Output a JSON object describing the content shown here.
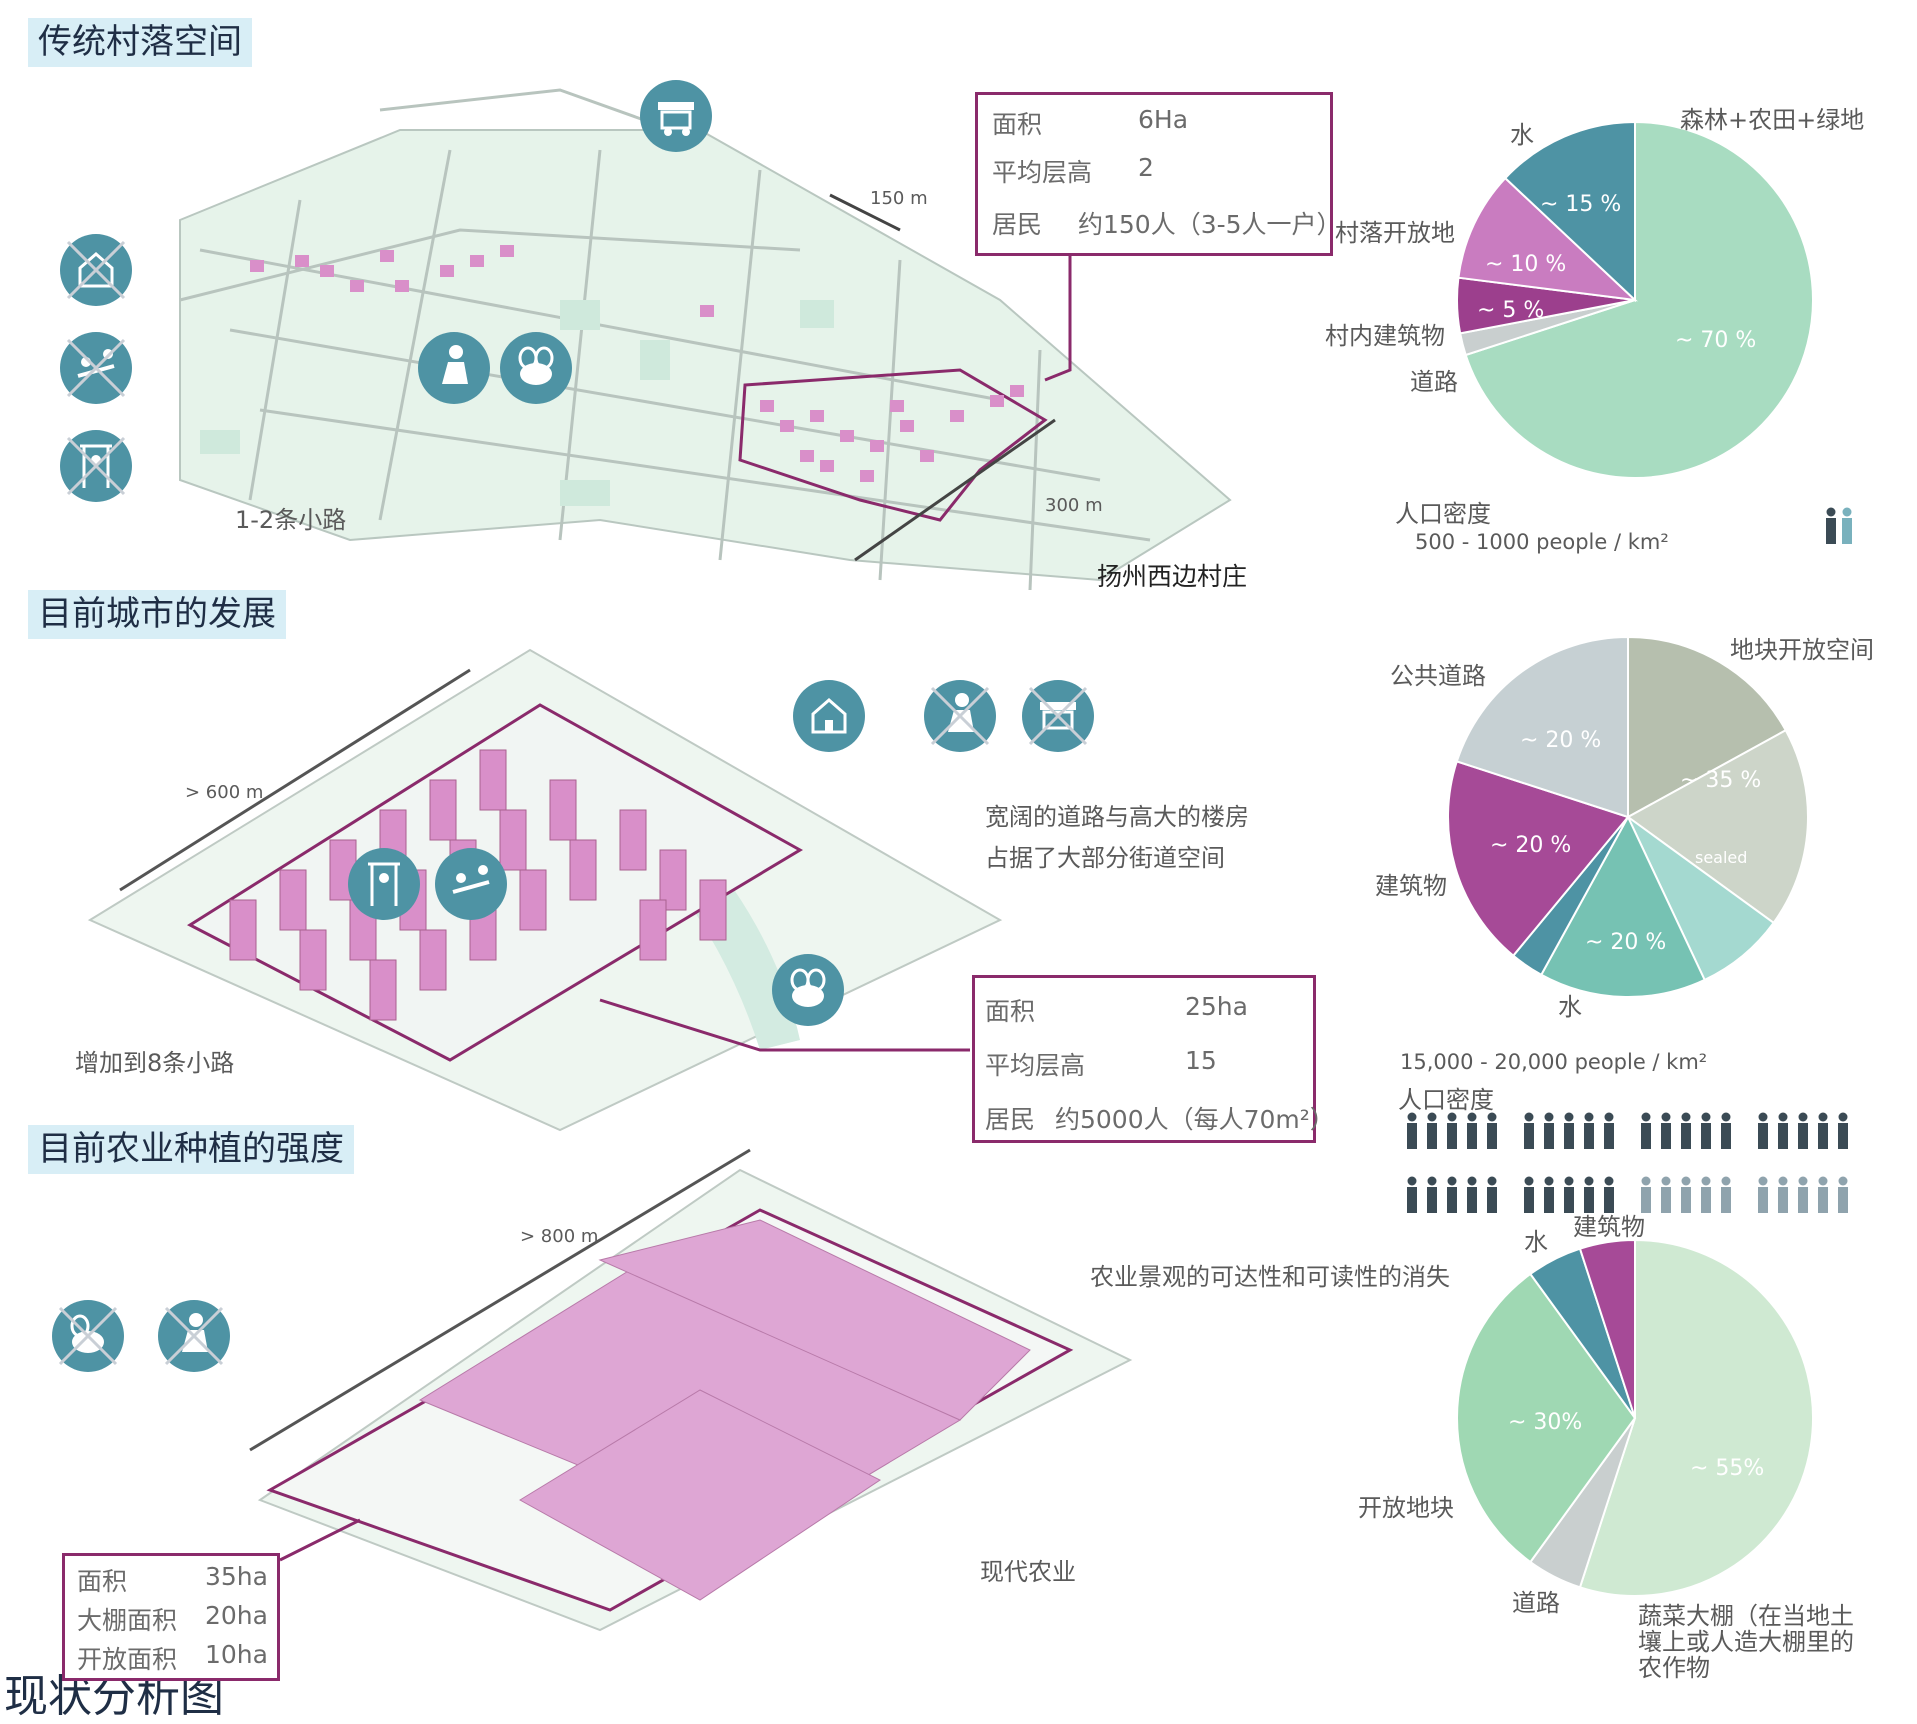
{
  "main_title": "现状分析图",
  "sections": {
    "village": {
      "title": "传统村落空间",
      "road_label": "1-2条小路",
      "dim_short": "150 m",
      "dim_long": "300 m",
      "place_label": "扬州西边村庄",
      "info": {
        "area_label": "面积",
        "area_value": "6Ha",
        "floors_label": "平均层高",
        "floors_value": "2",
        "residents_label": "居民",
        "residents_value": "约150人（3-5人一户）"
      },
      "density_label": "人口密度",
      "density_value": "500 - 1000 people / km²",
      "pie_labels": [
        "水",
        "森林+农田+绿地",
        "村落开放地",
        "村内建筑物",
        "道路"
      ],
      "pie_values": [
        "~ 15 %",
        "~ 10 %",
        "~ 5 %",
        "~ 70 %"
      ]
    },
    "city": {
      "title": "目前城市的发展",
      "road_label": "增加到8条小路",
      "dim_label": "> 600 m",
      "note_line1": "宽阔的道路与高大的楼房",
      "note_line2": "占据了大部分街道空间",
      "info": {
        "area_label": "面积",
        "area_value": "25ha",
        "floors_label": "平均层高",
        "floors_value": "15",
        "residents_label": "居民",
        "residents_value": "约5000人（每人70m²）"
      },
      "density_value": "15,000 - 20,000 people / km²",
      "density_label": "人口密度",
      "pie_labels": [
        "公共道路",
        "地块开放空间",
        "建筑物",
        "水"
      ],
      "pie_values": [
        "~ 20 %",
        "~ 35 %",
        "sealed",
        "~ 20 %",
        "~ 20 %"
      ]
    },
    "agri": {
      "title": "目前农业种植的强度",
      "dim_label": "> 800 m",
      "note": "农业景观的可达性和可读性的消失",
      "modern_label": "现代农业",
      "info": {
        "area_label": "面积",
        "area_value": "35ha",
        "greenhouse_label": "大棚面积",
        "greenhouse_value": "20ha",
        "open_label": "开放面积",
        "open_value": "10ha"
      },
      "pie_labels": [
        "水",
        "建筑物",
        "开放地块",
        "道路",
        "蔬菜大棚（在当地土",
        "壤上或人造大棚里的",
        "农作物"
      ],
      "pie_values": [
        "~ 30%",
        "~ 55%"
      ]
    }
  },
  "pie_charts": [
    {
      "slices": [
        {
          "label": "森林+农田+绿地",
          "value": 70,
          "color": "#a8dcc1"
        },
        {
          "label": "道路",
          "value": 2,
          "color": "#c9cfcf"
        },
        {
          "label": "村内建筑物",
          "value": 5,
          "color": "#9c3f8d"
        },
        {
          "label": "村落开放地",
          "value": 10,
          "color": "#c97cc0"
        },
        {
          "label": "水",
          "value": 13,
          "color": "#4e93a4"
        }
      ]
    },
    {
      "slices": [
        {
          "label": "地块开放空间",
          "value": 17,
          "color": "#b6bfae"
        },
        {
          "label": "sealed",
          "value": 18,
          "color": "#cdd5c9"
        },
        {
          "label": "水a",
          "value": 8,
          "color": "#a4d9d0"
        },
        {
          "label": "水",
          "value": 15,
          "color": "#76c2b3"
        },
        {
          "label": "水b",
          "value": 3,
          "color": "#4e93a4"
        },
        {
          "label": "建筑物",
          "value": 19,
          "color": "#a64a97"
        },
        {
          "label": "公共道路",
          "value": 20,
          "color": "#c6d0d3"
        }
      ]
    },
    {
      "slices": [
        {
          "label": "蔬菜大棚",
          "value": 55,
          "color": "#cfe9d2"
        },
        {
          "label": "道路",
          "value": 5,
          "color": "#c9cfcf"
        },
        {
          "label": "开放地块",
          "value": 30,
          "color": "#9fd8b3"
        },
        {
          "label": "水",
          "value": 5,
          "color": "#4e93a4"
        },
        {
          "label": "建筑物",
          "value": 5,
          "color": "#a64a97"
        }
      ]
    }
  ],
  "icons": {
    "village_row": [
      "market-stall-icon",
      "worker-icon",
      "bee-icon",
      "school-crossed-icon",
      "playground-crossed-icon",
      "sport-crossed-icon"
    ],
    "city_row": [
      "school-icon",
      "worker-crossed-icon",
      "market-crossed-icon",
      "sport-icon",
      "playground-icon",
      "bee-icon"
    ],
    "agri_row": [
      "bee-crossed-icon",
      "worker-crossed-icon"
    ]
  },
  "colors": {
    "accent": "#8a2a6b",
    "teal": "#4e93a4",
    "title_bg": "#d8eef6",
    "map_green": "#e4f3ea",
    "building": "#d98fc9"
  }
}
